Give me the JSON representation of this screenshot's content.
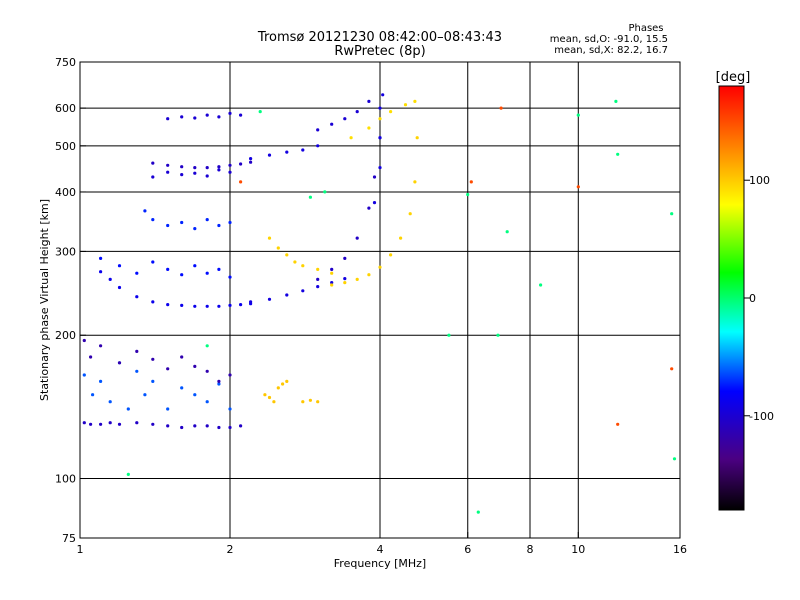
{
  "chart_data": {
    "type": "scatter",
    "title": "Tromsø 20121230 08:42:00–08:43:43",
    "subtitle": "RwPretec (8p)",
    "xlabel": "Frequency [MHz]",
    "ylabel": "Stationary phase Virtual Height [km]",
    "x_scale": "log",
    "y_scale": "log",
    "xlim": [
      1,
      16
    ],
    "ylim": [
      75,
      750
    ],
    "x_ticks": [
      1,
      2,
      4,
      6,
      8,
      10,
      16
    ],
    "y_ticks": [
      75,
      100,
      200,
      300,
      400,
      500,
      600,
      750
    ],
    "x_gridlines": [
      2,
      4,
      6,
      8,
      10
    ],
    "y_gridlines": [
      100,
      200,
      300,
      400,
      500,
      600
    ],
    "grid": true,
    "legend": {
      "title": "Phases",
      "lines": [
        "mean, sd,O: -91.0, 15.5",
        "mean, sd,X:  82.2, 16.7"
      ],
      "position": "top-right"
    },
    "colorbar": {
      "label": "[deg]",
      "range": [
        -180,
        180
      ],
      "ticks": [
        100,
        0,
        -100
      ],
      "colormap": [
        "#000000",
        "#4b0082",
        "#0000ff",
        "#00ffff",
        "#00ff00",
        "#ffff00",
        "#ff8000",
        "#ff0000"
      ]
    },
    "series": [
      {
        "x": [
          1.02,
          1.05,
          1.1,
          1.15,
          1.2,
          1.3,
          1.4,
          1.5,
          1.6,
          1.7,
          1.8,
          1.9,
          2.0,
          2.1
        ],
        "y": [
          131,
          130,
          130,
          131,
          130,
          131,
          130,
          129,
          128,
          129,
          129,
          128,
          128,
          129
        ],
        "phase": -100
      },
      {
        "x": [
          1.02,
          1.06,
          1.1,
          1.15,
          1.2,
          1.25,
          1.3,
          1.35,
          1.4,
          1.5,
          1.6,
          1.7,
          1.8,
          1.9,
          2.0
        ],
        "y": [
          165,
          150,
          160,
          145,
          175,
          140,
          168,
          150,
          160,
          140,
          155,
          150,
          145,
          158,
          140
        ],
        "phase": -60
      },
      {
        "x": [
          1.02,
          1.05,
          1.1,
          1.2,
          1.3,
          1.4,
          1.5,
          1.6,
          1.7,
          1.8,
          1.9,
          2.0
        ],
        "y": [
          195,
          180,
          190,
          175,
          185,
          178,
          170,
          180,
          172,
          168,
          160,
          165
        ],
        "phase": -110
      },
      {
        "x": [
          1.1,
          1.15,
          1.2,
          1.3,
          1.4,
          1.5,
          1.6,
          1.7,
          1.8,
          1.9,
          2.0,
          2.1,
          2.2
        ],
        "y": [
          272,
          262,
          252,
          241,
          235,
          232,
          231,
          230,
          230,
          230,
          231,
          232,
          233
        ],
        "phase": -85
      },
      {
        "x": [
          1.1,
          1.2,
          1.3,
          1.4,
          1.5,
          1.6,
          1.7,
          1.8,
          1.9,
          2.0
        ],
        "y": [
          290,
          280,
          270,
          285,
          275,
          268,
          280,
          270,
          275,
          265
        ],
        "phase": -75
      },
      {
        "x": [
          2.2,
          2.4,
          2.6,
          2.8,
          3.0,
          3.2,
          3.4
        ],
        "y": [
          235,
          238,
          243,
          248,
          253,
          258,
          263
        ],
        "phase": -90
      },
      {
        "x": [
          1.35,
          1.4,
          1.5,
          1.6,
          1.7,
          1.8,
          1.9,
          2.0
        ],
        "y": [
          365,
          350,
          340,
          345,
          335,
          350,
          340,
          345
        ],
        "phase": -70
      },
      {
        "x": [
          1.4,
          1.5,
          1.6,
          1.7,
          1.8,
          1.9,
          2.0,
          2.1,
          2.2
        ],
        "y": [
          460,
          455,
          452,
          450,
          450,
          452,
          455,
          458,
          462
        ],
        "phase": -100
      },
      {
        "x": [
          1.4,
          1.5,
          1.6,
          1.7,
          1.8,
          1.9,
          2.0
        ],
        "y": [
          430,
          440,
          435,
          438,
          432,
          445,
          440
        ],
        "phase": -95
      },
      {
        "x": [
          1.5,
          1.6,
          1.7,
          1.8,
          1.9,
          2.0,
          2.1
        ],
        "y": [
          570,
          575,
          572,
          580,
          575,
          585,
          580
        ],
        "phase": -95
      },
      {
        "x": [
          2.2,
          2.4,
          2.6,
          2.8,
          3.0
        ],
        "y": [
          470,
          478,
          485,
          490,
          500
        ],
        "phase": -90
      },
      {
        "x": [
          3.0,
          3.2,
          3.4,
          3.6,
          3.8
        ],
        "y": [
          540,
          555,
          570,
          590,
          620
        ],
        "phase": -95
      },
      {
        "x": [
          3.0,
          3.2,
          3.4,
          3.6,
          3.8,
          3.9,
          4.0
        ],
        "y": [
          262,
          275,
          290,
          320,
          370,
          430,
          520
        ],
        "phase": -100
      },
      {
        "x": [
          3.9,
          4.0,
          4.0,
          4.0,
          4.05
        ],
        "y": [
          380,
          450,
          520,
          600,
          640
        ],
        "phase": -90
      },
      {
        "x": [
          3.2,
          3.4,
          3.6,
          3.8,
          4.0,
          4.2,
          4.4,
          4.6,
          4.7,
          4.75
        ],
        "y": [
          255,
          258,
          262,
          268,
          278,
          295,
          320,
          360,
          420,
          520
        ],
        "phase": 95
      },
      {
        "x": [
          3.5,
          3.8,
          4.0,
          4.2,
          4.5,
          4.7
        ],
        "y": [
          520,
          545,
          570,
          590,
          610,
          620
        ],
        "phase": 90
      },
      {
        "x": [
          2.4,
          2.5,
          2.6,
          2.7,
          2.8,
          3.0,
          3.2
        ],
        "y": [
          320,
          305,
          295,
          285,
          280,
          275,
          270
        ],
        "phase": 95
      },
      {
        "x": [
          2.35,
          2.4,
          2.45,
          2.5,
          2.55,
          2.6
        ],
        "y": [
          150,
          148,
          145,
          155,
          158,
          160
        ],
        "phase": 100
      },
      {
        "x": [
          2.8,
          2.9,
          3.0
        ],
        "y": [
          145,
          146,
          145
        ],
        "phase": 100
      },
      {
        "x": [
          1.25,
          1.8,
          2.3,
          2.9,
          3.1,
          5.5,
          6.0,
          6.3,
          6.9,
          7.2,
          8.4,
          10.0,
          11.9,
          12.0,
          15.4,
          15.6
        ],
        "y": [
          102,
          190,
          590,
          390,
          400,
          200,
          395,
          85,
          200,
          330,
          255,
          580,
          620,
          480,
          360,
          110
        ],
        "phase": 0
      },
      {
        "x": [
          2.1,
          6.1,
          7.0,
          10.0,
          12.0,
          15.4
        ],
        "y": [
          420,
          420,
          600,
          410,
          130,
          170
        ],
        "phase": 150
      }
    ]
  }
}
